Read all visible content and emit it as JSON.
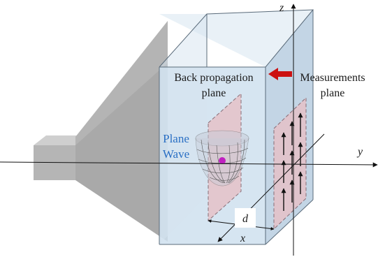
{
  "labels": {
    "back_propagation_line1": "Back propagation",
    "back_propagation_line2": "plane",
    "measurements_line1": "Measurements",
    "measurements_line2": "plane",
    "plane_wave_line1": "Plane",
    "plane_wave_line2": "Wave",
    "distance": "d"
  },
  "axes": {
    "x": "x",
    "y": "y",
    "z": "z"
  },
  "colors": {
    "box_front": "#cfe0ee",
    "box_side": "#bcd0e2",
    "box_edge": "#5a6b7a",
    "horn": "#a9a9a9",
    "plane_fill": "#e6c2c8",
    "plane_edge": "#7a5a62",
    "arrow_red": "#cc1111",
    "wave_text": "#2a6fc4",
    "source": "#c020c0"
  },
  "icons": {
    "direction_arrow": "red-left-arrow-icon",
    "field_vectors": "up-arrow-icon"
  }
}
